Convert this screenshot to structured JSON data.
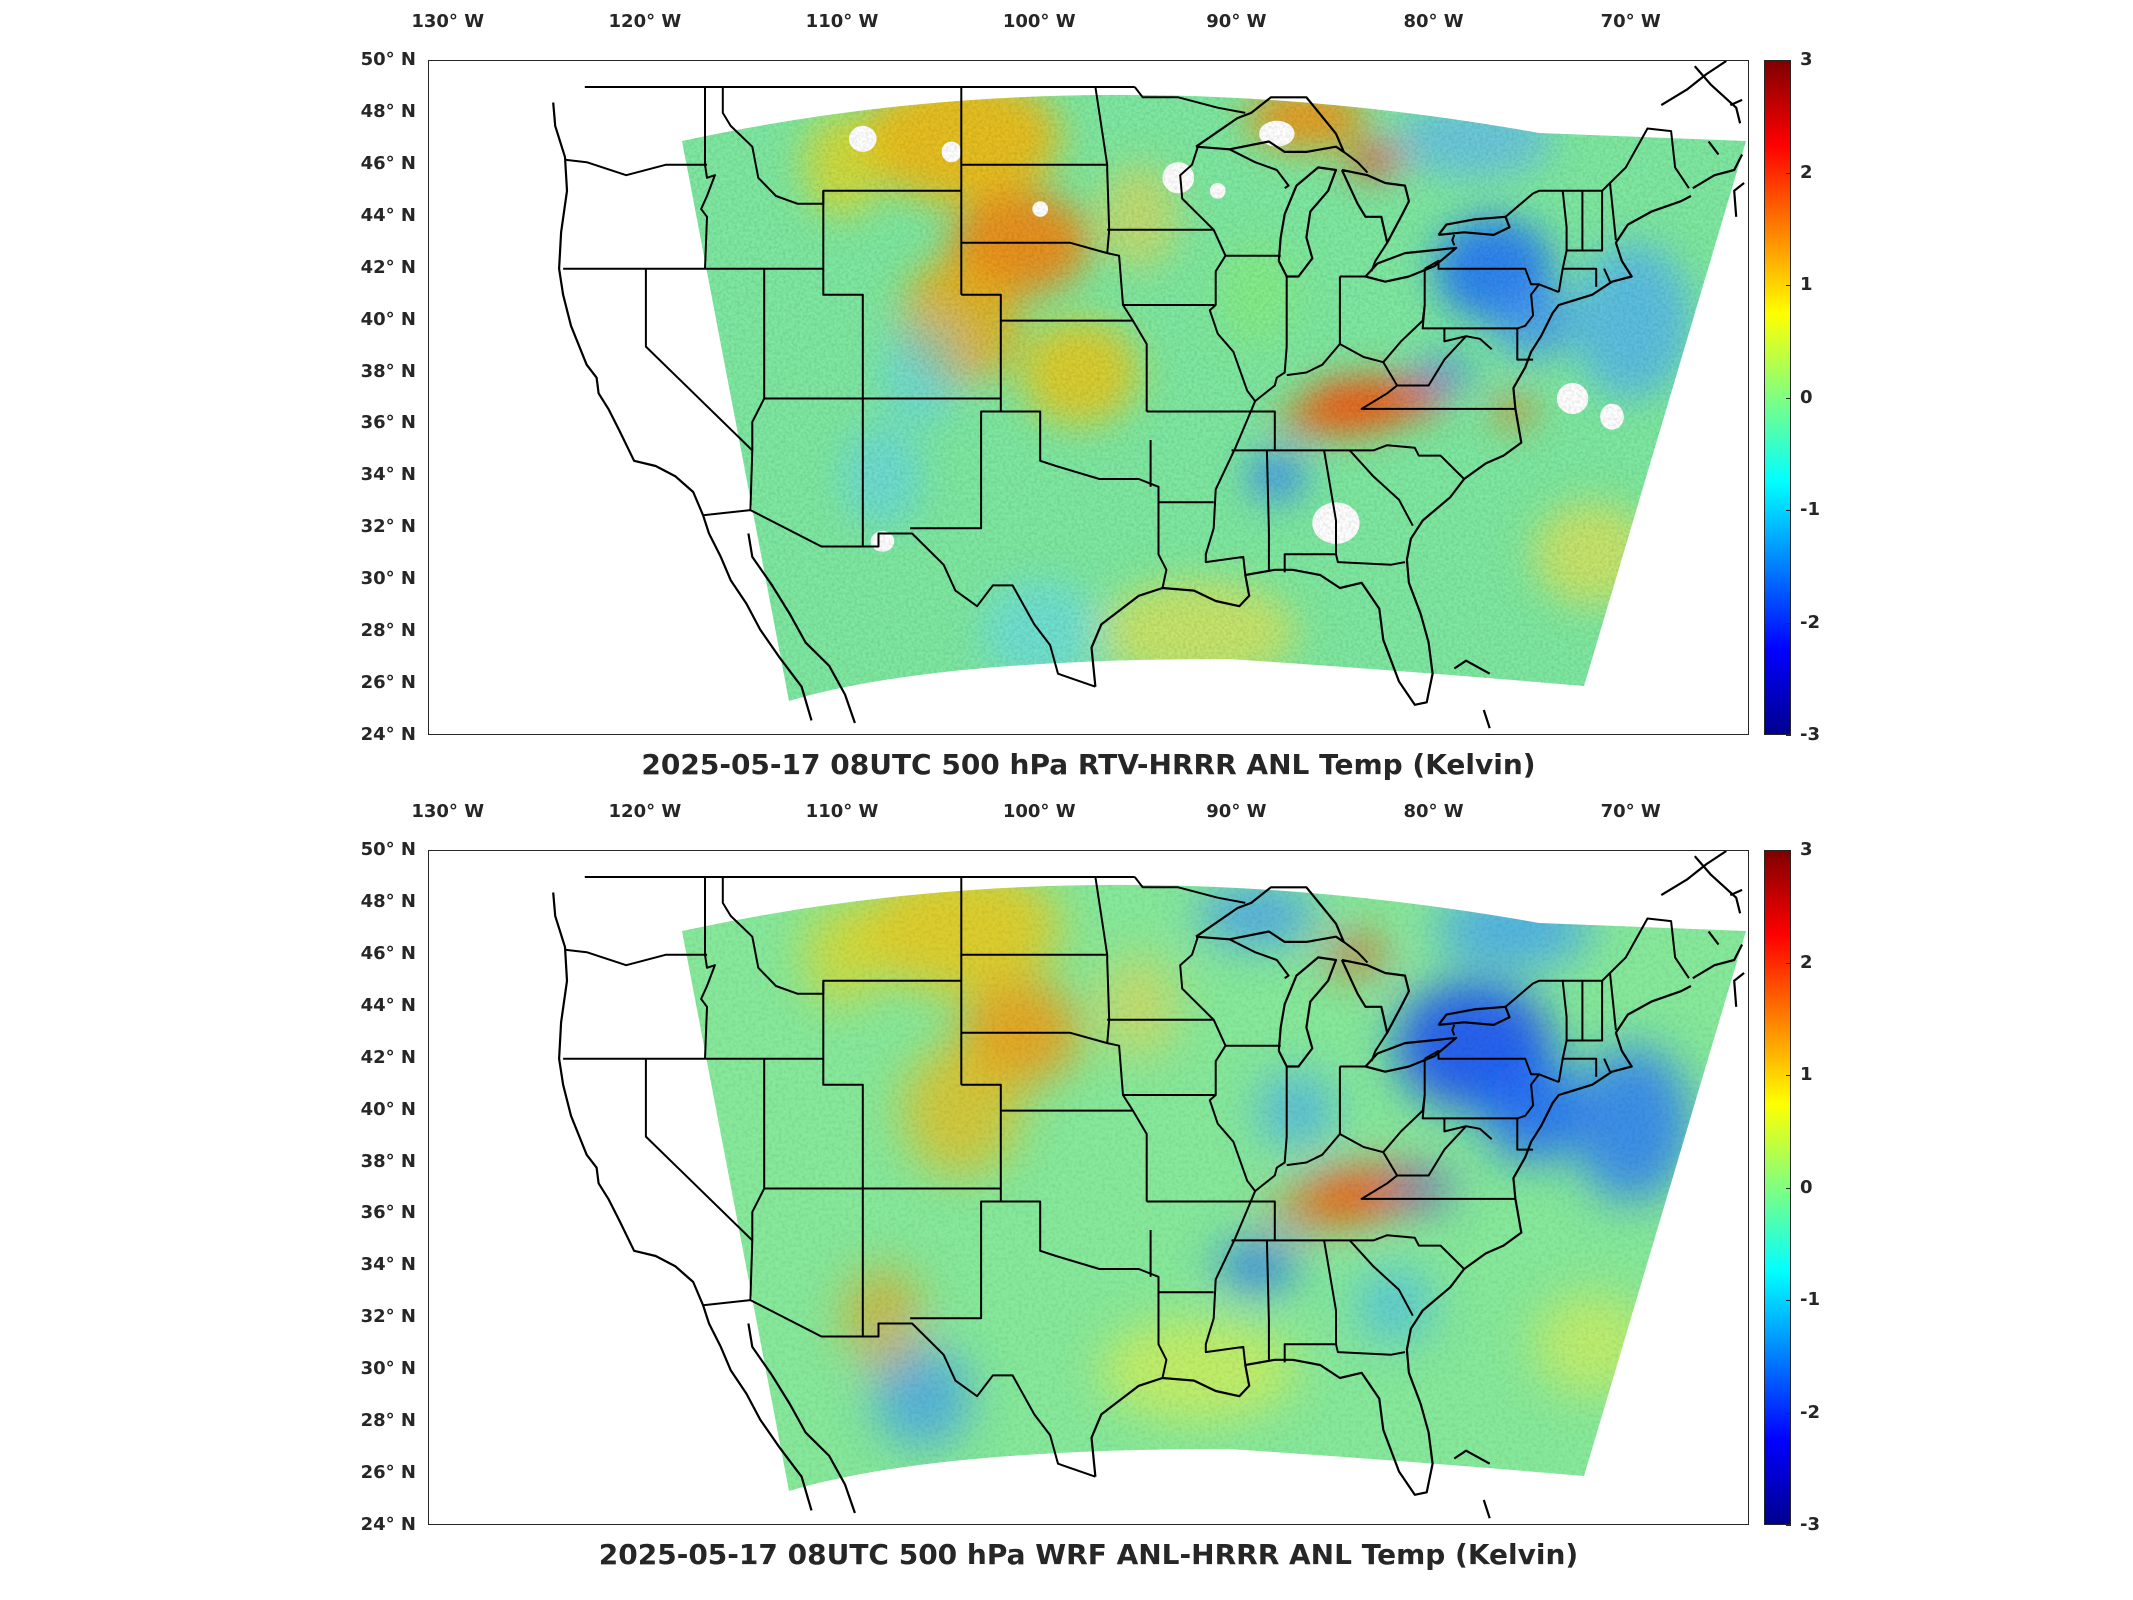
{
  "figure": {
    "panels": [
      {
        "title": "2025-05-17 08UTC 500 hPa RTV-HRRR ANL Temp (Kelvin)",
        "field": "rtv",
        "colorbar_ticks": [
          "3",
          "2",
          "1",
          "0",
          "-1",
          "-2",
          "-3"
        ]
      },
      {
        "title": "2025-05-17 08UTC 500 hPa WRF ANL-HRRR ANL Temp (Kelvin)",
        "field": "wrf",
        "colorbar_ticks": [
          "3",
          "2",
          "1",
          "0",
          "-1",
          "-2",
          "-3"
        ]
      }
    ],
    "lon_ticks": [
      {
        "label": "130° W",
        "lon": -130
      },
      {
        "label": "120° W",
        "lon": -120
      },
      {
        "label": "110° W",
        "lon": -110
      },
      {
        "label": "100° W",
        "lon": -100
      },
      {
        "label": "90° W",
        "lon": -90
      },
      {
        "label": "80° W",
        "lon": -80
      },
      {
        "label": "70° W",
        "lon": -70
      }
    ],
    "lat_ticks": [
      {
        "label": "50° N",
        "lat": 50
      },
      {
        "label": "48° N",
        "lat": 48
      },
      {
        "label": "46° N",
        "lat": 46
      },
      {
        "label": "44° N",
        "lat": 44
      },
      {
        "label": "42° N",
        "lat": 42
      },
      {
        "label": "40° N",
        "lat": 40
      },
      {
        "label": "38° N",
        "lat": 38
      },
      {
        "label": "36° N",
        "lat": 36
      },
      {
        "label": "34° N",
        "lat": 34
      },
      {
        "label": "32° N",
        "lat": 32
      },
      {
        "label": "30° N",
        "lat": 30
      },
      {
        "label": "28° N",
        "lat": 28
      },
      {
        "label": "26° N",
        "lat": 26
      },
      {
        "label": "24° N",
        "lat": 24
      }
    ],
    "colorbar": {
      "range": [
        -3,
        3
      ],
      "colormap": "jet",
      "colors": [
        "#00008f",
        "#0000ff",
        "#0080ff",
        "#00ffff",
        "#80ff80",
        "#ffff00",
        "#ff8000",
        "#ff0000",
        "#800000"
      ]
    },
    "map_extent": {
      "lon": [
        -131,
        -64
      ],
      "lat": [
        24,
        50
      ]
    }
  }
}
